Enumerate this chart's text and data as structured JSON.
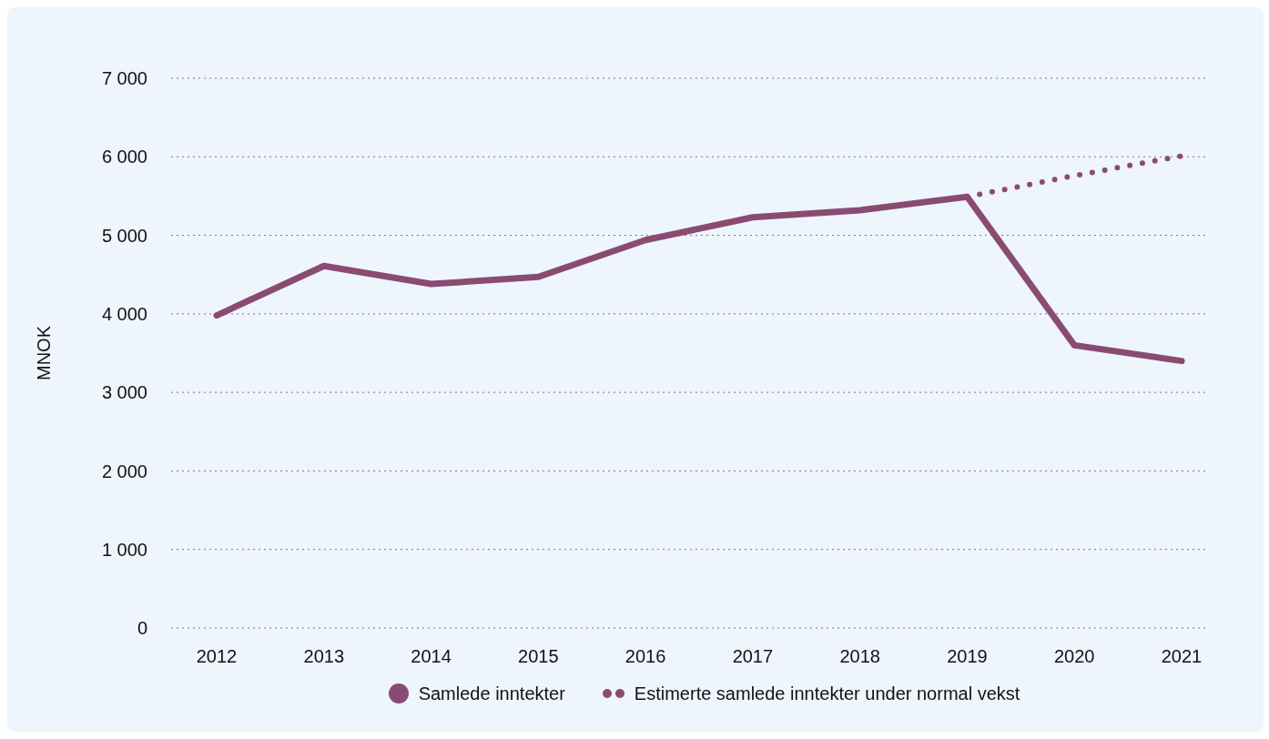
{
  "chart_data": {
    "type": "line",
    "ylabel": "MNOK",
    "categories": [
      "2012",
      "2013",
      "2014",
      "2015",
      "2016",
      "2017",
      "2018",
      "2019",
      "2020",
      "2021"
    ],
    "series": [
      {
        "name": "Samlede inntekter",
        "color": "#8a4b73",
        "line_style": "solid",
        "values": [
          3980,
          4610,
          4380,
          4470,
          4940,
          5230,
          5320,
          5490,
          3600,
          3400
        ]
      },
      {
        "name": "Estimerte samlede inntekter under normal vekst",
        "color": "#8a4b73",
        "line_style": "dotted",
        "values": [
          null,
          null,
          null,
          null,
          null,
          null,
          null,
          5490,
          5760,
          6010
        ]
      }
    ],
    "ylim": [
      0,
      7000
    ],
    "yticks": [
      0,
      {
        "value": 1000,
        "label": "1 000"
      },
      {
        "value": 2000,
        "label": "2 000"
      },
      {
        "value": 3000,
        "label": "3 000"
      },
      {
        "value": 4000,
        "label": "4 000"
      },
      {
        "value": 5000,
        "label": "5 000"
      },
      {
        "value": 6000,
        "label": "6 000"
      },
      {
        "value": 7000,
        "label": "7 000"
      }
    ],
    "grid": "y",
    "legend": "bottom",
    "marker": "none"
  }
}
